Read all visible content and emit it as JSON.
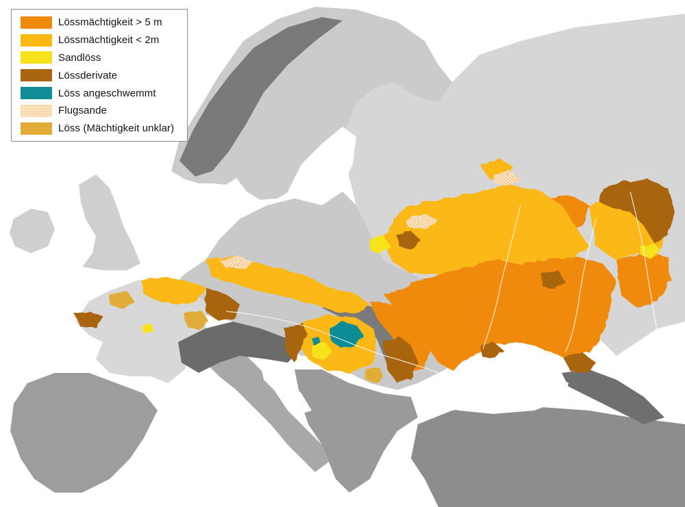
{
  "legend": {
    "items": [
      {
        "label": "Lössmächtigkeit > 5 m",
        "color": "#f08a0c",
        "pattern": "solid"
      },
      {
        "label": "Lössmächtigkeit < 2m",
        "color": "#fbb812",
        "pattern": "solid"
      },
      {
        "label": "Sandlöss",
        "color": "#f7e31c",
        "pattern": "solid"
      },
      {
        "label": "Lössderivate",
        "color": "#a9650f",
        "pattern": "solid"
      },
      {
        "label": "Löss angeschwemmt",
        "color": "#0f8c96",
        "pattern": "solid"
      },
      {
        "label": "Flugsande",
        "color": "#f3c88a",
        "pattern": "dotted"
      },
      {
        "label": "Löss (Mächtigkeit unklar)",
        "color": "#e2ac38",
        "pattern": "solid"
      }
    ]
  },
  "map": {
    "sea_color": "#ffffff",
    "land_color": "#d2d2d2",
    "mountain_color": "#6e6e6e"
  }
}
